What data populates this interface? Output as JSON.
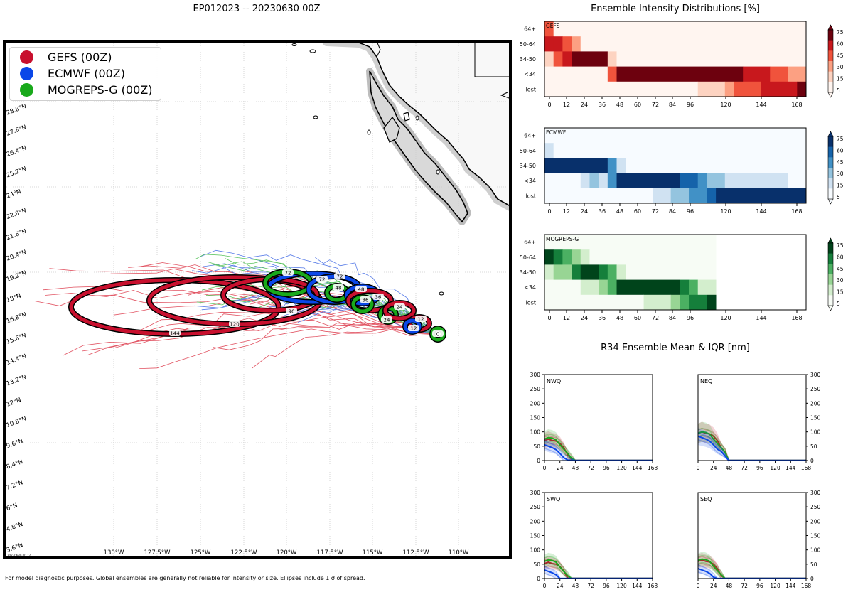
{
  "map": {
    "title": "EP012023 -- 20230630 00Z",
    "lat_labels": [
      "3.6°N",
      "4.8°N",
      "6°N",
      "7.2°N",
      "8.4°N",
      "9.6°N",
      "10.8°N",
      "12°N",
      "13.2°N",
      "14.4°N",
      "15.6°N",
      "16.8°N",
      "18°N",
      "19.2°N",
      "20.4°N",
      "21.6°N",
      "22.8°N",
      "24°N",
      "25.2°N",
      "26.4°N",
      "27.6°N",
      "28.8°N"
    ],
    "lon_labels": [
      "130°W",
      "127.5°W",
      "125°W",
      "122.5°W",
      "120°W",
      "117.5°W",
      "115°W",
      "112.5°W",
      "110°W"
    ],
    "stamp": "20230630 00 12",
    "ellipse_hours": [
      "144",
      "120",
      "96",
      "72",
      "48",
      "36",
      "24",
      "12",
      "0"
    ]
  },
  "legend": [
    {
      "label": "GEFS (00Z)",
      "color": "#c8102e"
    },
    {
      "label": "ECMWF (00Z)",
      "color": "#0a47e8"
    },
    {
      "label": "MOGREPS-G (00Z)",
      "color": "#19a91b"
    }
  ],
  "intensity": {
    "title": "Ensemble Intensity Distributions [%]",
    "rows": [
      "64+",
      "50-64",
      "34-50",
      "<34",
      "lost"
    ],
    "xticks": [
      "0",
      "12",
      "24",
      "36",
      "48",
      "60",
      "72",
      "84",
      "96",
      "120",
      "144",
      "168"
    ],
    "colorbar_ticks": [
      "75",
      "60",
      "45",
      "30",
      "15",
      "5"
    ],
    "panels": [
      {
        "name": "GEFS",
        "cmap": "reds"
      },
      {
        "name": "ECMWF",
        "cmap": "blues"
      },
      {
        "name": "MOGREPS-G",
        "cmap": "greens"
      }
    ]
  },
  "r34": {
    "title": "R34 Ensemble Mean & IQR [nm]",
    "yticks": [
      "0",
      "50",
      "100",
      "150",
      "200",
      "250",
      "300"
    ],
    "xticks": [
      "0",
      "24",
      "48",
      "72",
      "96",
      "120",
      "144",
      "168"
    ],
    "quadrants": [
      "NWQ",
      "NEQ",
      "SWQ",
      "SEQ"
    ]
  },
  "footer": "For model diagnostic purposes. Global ensembles are generally not reliable for intensity or size. Ellipses include 1 σ of spread."
}
